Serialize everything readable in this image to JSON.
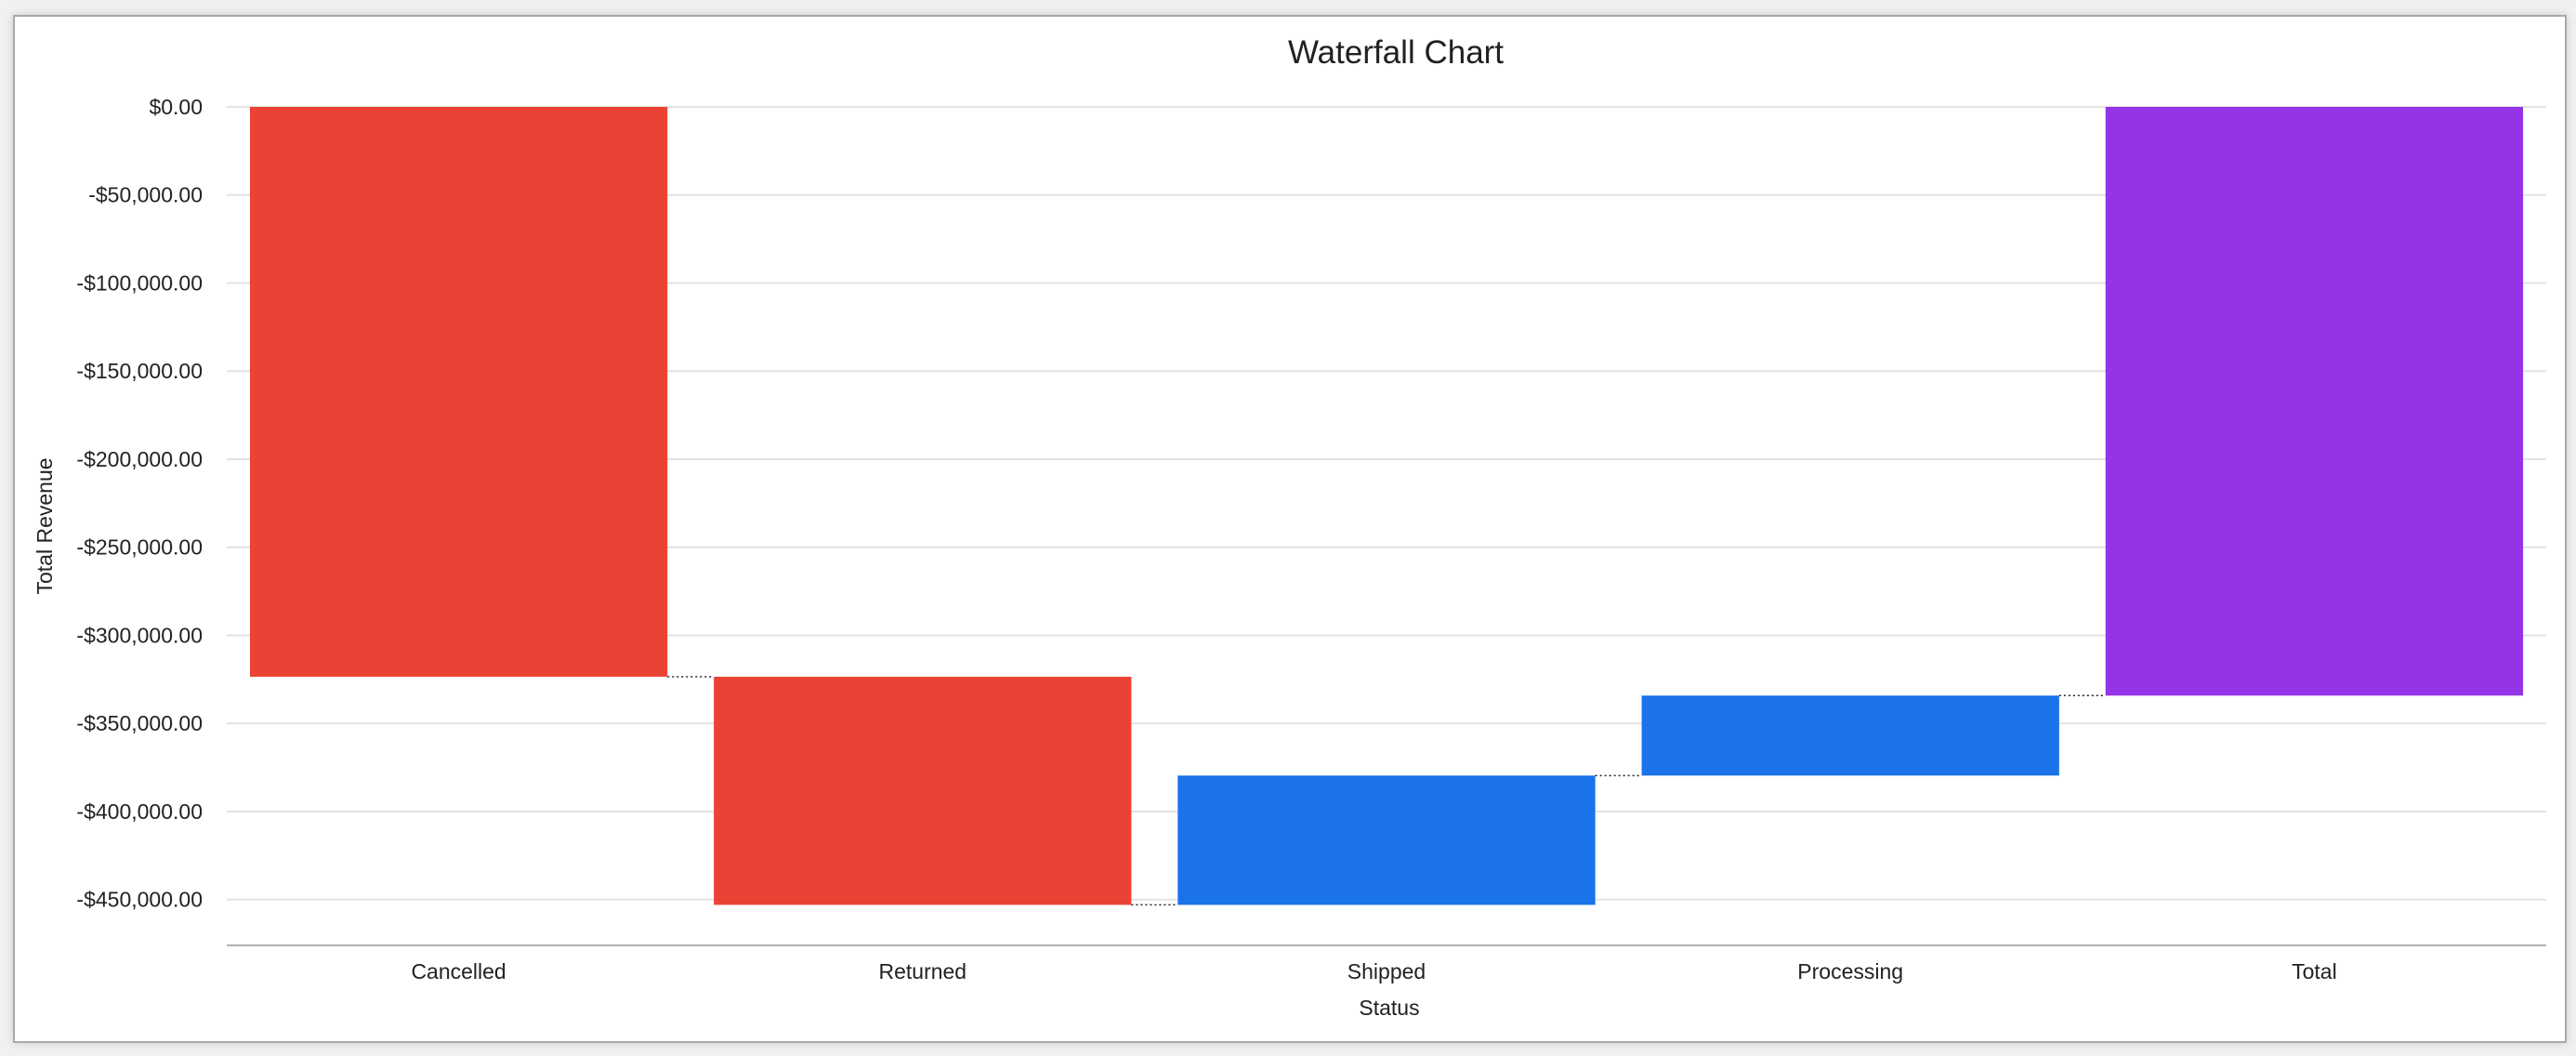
{
  "chart_data": {
    "type": "waterfall",
    "title": "Waterfall Chart",
    "xlabel": "Status",
    "ylabel": "Total Revenue",
    "categories": [
      "Cancelled",
      "Returned",
      "Shipped",
      "Processing",
      "Total"
    ],
    "values": [
      -323500,
      -129500,
      73400,
      45400,
      -334200
    ],
    "is_total": [
      false,
      false,
      false,
      false,
      true
    ],
    "ylim": [
      -476000,
      0
    ],
    "yticks": [
      0,
      -50000,
      -100000,
      -150000,
      -200000,
      -250000,
      -300000,
      -350000,
      -400000,
      -450000
    ],
    "ytick_labels": [
      "$0.00",
      "-$50,000.00",
      "-$100,000.00",
      "-$150,000.00",
      "-$200,000.00",
      "-$250,000.00",
      "-$300,000.00",
      "-$350,000.00",
      "-$400,000.00",
      "-$450,000.00"
    ],
    "grid": true,
    "legend": "none",
    "colors": {
      "decrease": "#ea4335",
      "increase": "#1a73e8",
      "total": "#9334e6"
    }
  }
}
